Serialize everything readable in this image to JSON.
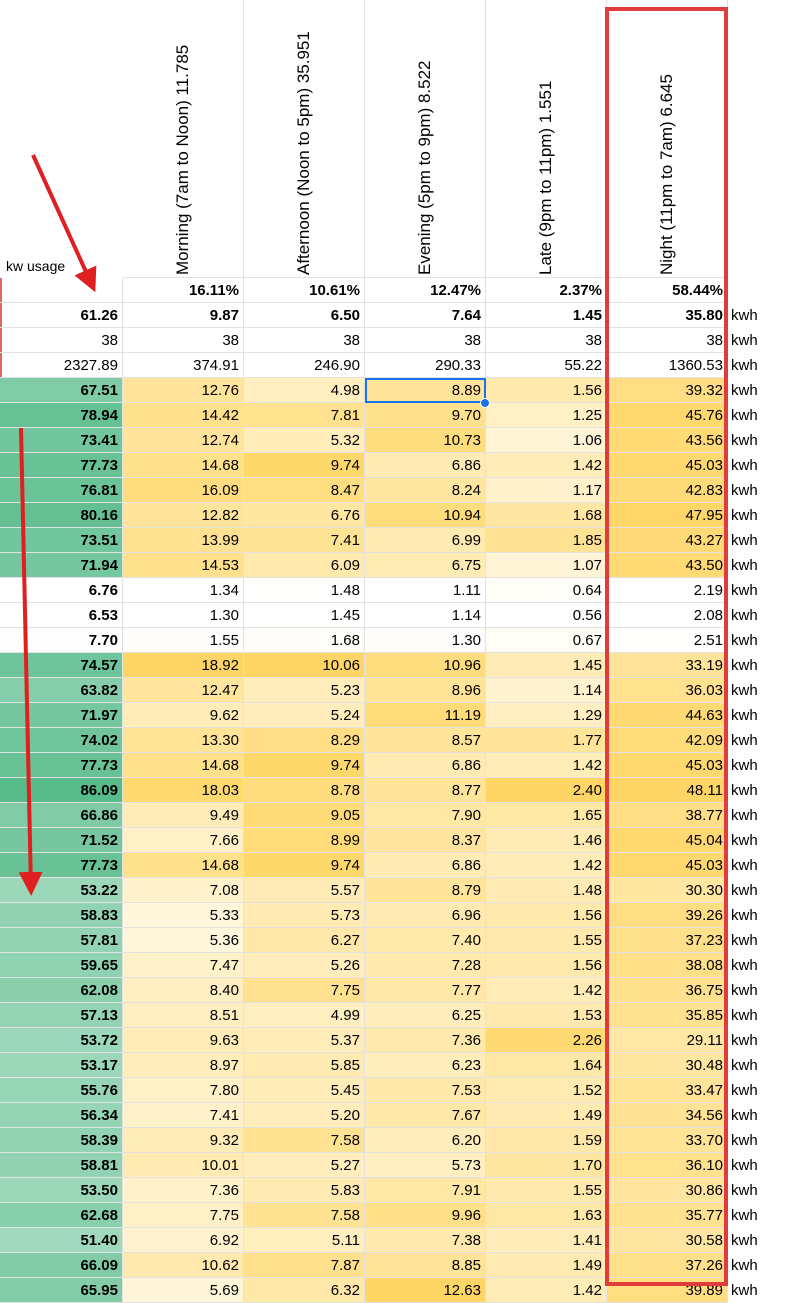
{
  "header": {
    "kw_label": "kw usage",
    "columns": [
      "Morning (7am to Noon) 11.785",
      "Afternoon (Noon to 5pm) 35.951",
      "Evening (5pm to 9pm) 8.522",
      "Late (9pm to 11pm) 1.551",
      "Night (11pm to 7am) 6.645"
    ]
  },
  "summary_rows": [
    {
      "values": [
        "",
        "16.11%",
        "10.61%",
        "12.47%",
        "2.37%",
        "58.44%"
      ],
      "unit": "",
      "bold": true
    },
    {
      "values": [
        "61.26",
        "9.87",
        "6.50",
        "7.64",
        "1.45",
        "35.80"
      ],
      "unit": "kwh",
      "bold": true
    },
    {
      "values": [
        "38",
        "38",
        "38",
        "38",
        "38",
        "38"
      ],
      "unit": "kwh",
      "bold": false
    },
    {
      "values": [
        "2327.89",
        "374.91",
        "246.90",
        "290.33",
        "55.22",
        "1360.53"
      ],
      "unit": "kwh",
      "bold": false
    }
  ],
  "data_rows": [
    [
      "67.51",
      "12.76",
      "4.98",
      "8.89",
      "1.56",
      "39.32"
    ],
    [
      "78.94",
      "14.42",
      "7.81",
      "9.70",
      "1.25",
      "45.76"
    ],
    [
      "73.41",
      "12.74",
      "5.32",
      "10.73",
      "1.06",
      "43.56"
    ],
    [
      "77.73",
      "14.68",
      "9.74",
      "6.86",
      "1.42",
      "45.03"
    ],
    [
      "76.81",
      "16.09",
      "8.47",
      "8.24",
      "1.17",
      "42.83"
    ],
    [
      "80.16",
      "12.82",
      "6.76",
      "10.94",
      "1.68",
      "47.95"
    ],
    [
      "73.51",
      "13.99",
      "7.41",
      "6.99",
      "1.85",
      "43.27"
    ],
    [
      "71.94",
      "14.53",
      "6.09",
      "6.75",
      "1.07",
      "43.50"
    ],
    [
      "6.76",
      "1.34",
      "1.48",
      "1.11",
      "0.64",
      "2.19"
    ],
    [
      "6.53",
      "1.30",
      "1.45",
      "1.14",
      "0.56",
      "2.08"
    ],
    [
      "7.70",
      "1.55",
      "1.68",
      "1.30",
      "0.67",
      "2.51"
    ],
    [
      "74.57",
      "18.92",
      "10.06",
      "10.96",
      "1.45",
      "33.19"
    ],
    [
      "63.82",
      "12.47",
      "5.23",
      "8.96",
      "1.14",
      "36.03"
    ],
    [
      "71.97",
      "9.62",
      "5.24",
      "11.19",
      "1.29",
      "44.63"
    ],
    [
      "74.02",
      "13.30",
      "8.29",
      "8.57",
      "1.77",
      "42.09"
    ],
    [
      "77.73",
      "14.68",
      "9.74",
      "6.86",
      "1.42",
      "45.03"
    ],
    [
      "86.09",
      "18.03",
      "8.78",
      "8.77",
      "2.40",
      "48.11"
    ],
    [
      "66.86",
      "9.49",
      "9.05",
      "7.90",
      "1.65",
      "38.77"
    ],
    [
      "71.52",
      "7.66",
      "8.99",
      "8.37",
      "1.46",
      "45.04"
    ],
    [
      "77.73",
      "14.68",
      "9.74",
      "6.86",
      "1.42",
      "45.03"
    ],
    [
      "53.22",
      "7.08",
      "5.57",
      "8.79",
      "1.48",
      "30.30"
    ],
    [
      "58.83",
      "5.33",
      "5.73",
      "6.96",
      "1.56",
      "39.26"
    ],
    [
      "57.81",
      "5.36",
      "6.27",
      "7.40",
      "1.55",
      "37.23"
    ],
    [
      "59.65",
      "7.47",
      "5.26",
      "7.28",
      "1.56",
      "38.08"
    ],
    [
      "62.08",
      "8.40",
      "7.75",
      "7.77",
      "1.42",
      "36.75"
    ],
    [
      "57.13",
      "8.51",
      "4.99",
      "6.25",
      "1.53",
      "35.85"
    ],
    [
      "53.72",
      "9.63",
      "5.37",
      "7.36",
      "2.26",
      "29.11"
    ],
    [
      "53.17",
      "8.97",
      "5.85",
      "6.23",
      "1.64",
      "30.48"
    ],
    [
      "55.76",
      "7.80",
      "5.45",
      "7.53",
      "1.52",
      "33.47"
    ],
    [
      "56.34",
      "7.41",
      "5.20",
      "7.67",
      "1.49",
      "34.56"
    ],
    [
      "58.39",
      "9.32",
      "7.58",
      "6.20",
      "1.59",
      "33.70"
    ],
    [
      "58.81",
      "10.01",
      "5.27",
      "5.73",
      "1.70",
      "36.10"
    ],
    [
      "53.50",
      "7.36",
      "5.83",
      "7.91",
      "1.55",
      "30.86"
    ],
    [
      "62.68",
      "7.75",
      "7.58",
      "9.96",
      "1.63",
      "35.77"
    ],
    [
      "51.40",
      "6.92",
      "5.11",
      "7.38",
      "1.41",
      "30.58"
    ],
    [
      "66.09",
      "10.62",
      "7.87",
      "8.85",
      "1.49",
      "37.26"
    ],
    [
      "65.95",
      "5.69",
      "6.32",
      "12.63",
      "1.42",
      "39.89"
    ]
  ],
  "unit_label": "kwh",
  "selected_cell": {
    "row": 0,
    "col": 3
  },
  "colors": {
    "highlight_box": "#e03c3c",
    "arrow": "#e02020",
    "selection": "#1a73e8",
    "green_high": "#57bb8a",
    "yellow_high": "#ffd666"
  }
}
